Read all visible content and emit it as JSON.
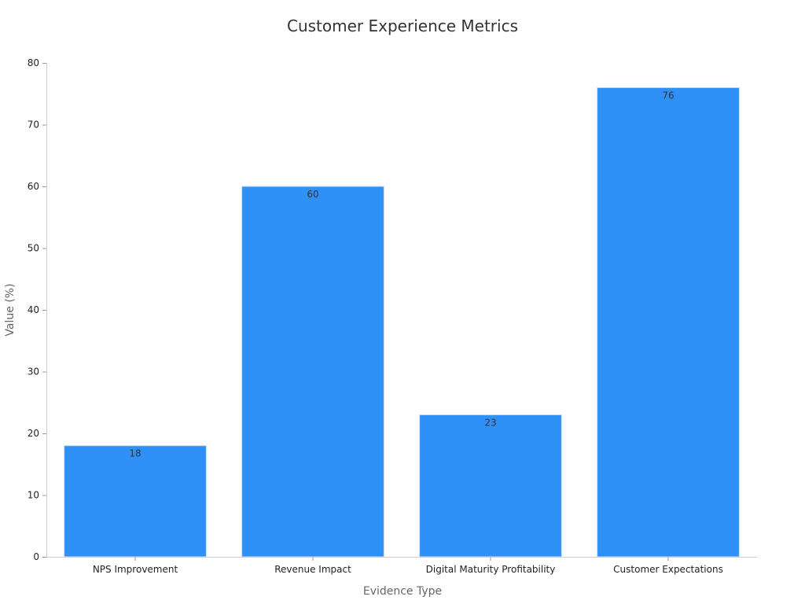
{
  "chart_data": {
    "type": "bar",
    "title": "Customer Experience Metrics",
    "xlabel": "Evidence Type",
    "ylabel": "Value (%)",
    "categories": [
      "NPS Improvement",
      "Revenue Impact",
      "Digital Maturity Profitability",
      "Customer Expectations"
    ],
    "values": [
      18,
      60,
      23,
      76
    ],
    "ylim": [
      0,
      80
    ],
    "yticks": [
      0,
      10,
      20,
      30,
      40,
      50,
      60,
      70,
      80
    ],
    "grid": false,
    "legend": "none",
    "bar_color": "#2f91f7",
    "bar_edge_color": "#c8dcf5"
  }
}
